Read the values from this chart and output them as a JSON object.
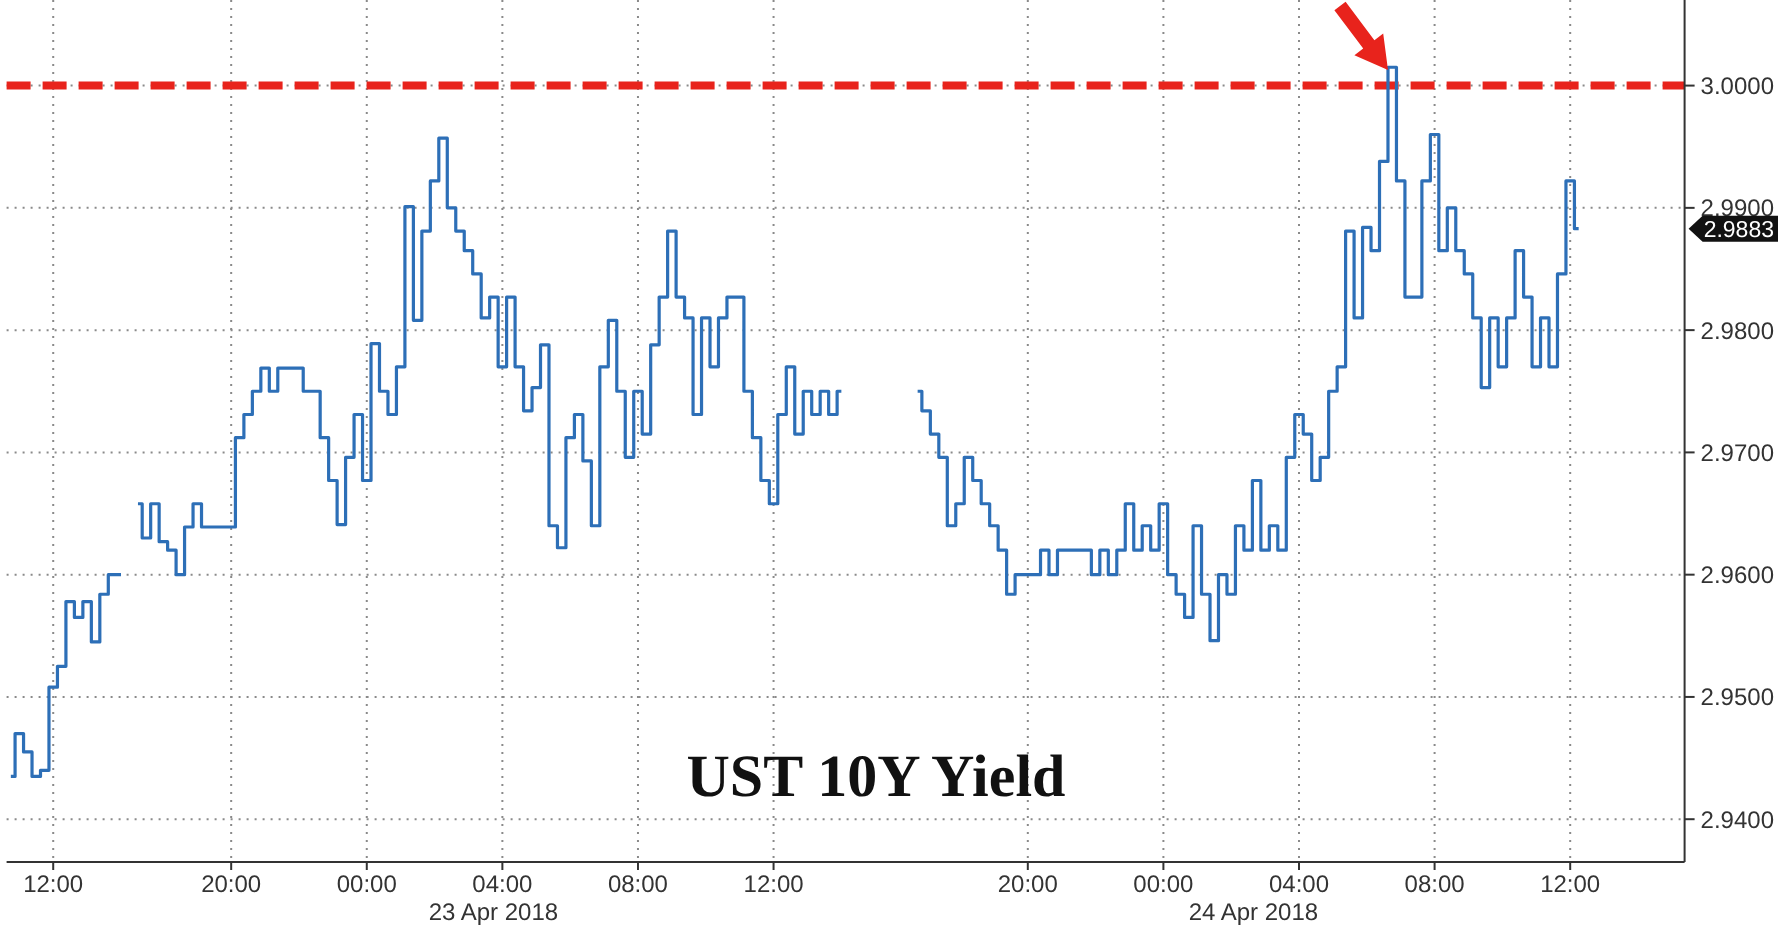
{
  "chart_data": {
    "type": "step",
    "title": "UST 10Y Yield",
    "color": "#2d6fb7",
    "ylim": [
      2.9365,
      3.007
    ],
    "yticks": [
      {
        "value": 2.94,
        "label": "2.9400"
      },
      {
        "value": 2.95,
        "label": "2.9500"
      },
      {
        "value": 2.96,
        "label": "2.9600"
      },
      {
        "value": 2.97,
        "label": "2.9700"
      },
      {
        "value": 2.98,
        "label": "2.9800"
      },
      {
        "value": 2.99,
        "label": "2.9900"
      },
      {
        "value": 3,
        "label": "3.0000"
      }
    ],
    "grid": true,
    "ref_lines": [
      {
        "axis": "y",
        "value": 3,
        "color": "#e8231c",
        "line_style": "dashed"
      }
    ],
    "annotations": [
      "2.9883",
      "23 Apr 2018",
      "24 Apr 2018"
    ],
    "categories": [
      null,
      null,
      null,
      null,
      null,
      "12:00",
      null,
      null,
      null,
      null,
      null,
      null,
      null,
      null,
      null,
      null,
      null,
      null,
      null,
      null,
      null,
      null,
      null,
      null,
      null,
      null,
      "20:00",
      null,
      null,
      null,
      null,
      null,
      null,
      null,
      null,
      null,
      null,
      null,
      null,
      null,
      null,
      null,
      "00:00",
      null,
      null,
      null,
      null,
      null,
      null,
      null,
      null,
      null,
      null,
      null,
      null,
      null,
      null,
      null,
      "04:00",
      null,
      null,
      null,
      null,
      null,
      null,
      null,
      null,
      null,
      null,
      null,
      null,
      null,
      null,
      null,
      "08:00",
      null,
      null,
      null,
      null,
      null,
      null,
      null,
      null,
      null,
      null,
      null,
      null,
      null,
      null,
      null,
      "12:00",
      null,
      null,
      null,
      null,
      null,
      null,
      null,
      null,
      null,
      null,
      null,
      null,
      null,
      null,
      null,
      null,
      null,
      null,
      null,
      null,
      null,
      null,
      null,
      null,
      null,
      null,
      null,
      null,
      null,
      "20:00",
      null,
      null,
      null,
      null,
      null,
      null,
      null,
      null,
      null,
      null,
      null,
      null,
      null,
      null,
      null,
      "00:00",
      null,
      null,
      null,
      null,
      null,
      null,
      null,
      null,
      null,
      null,
      null,
      null,
      null,
      null,
      null,
      "04:00",
      null,
      null,
      null,
      null,
      null,
      null,
      null,
      null,
      null,
      null,
      null,
      null,
      null,
      null,
      null,
      "08:00",
      null,
      null,
      null,
      null,
      null,
      null,
      null,
      null,
      null,
      null,
      null,
      null,
      null,
      null,
      null,
      "12:00",
      null,
      null,
      null,
      null,
      null,
      null,
      null,
      null,
      null,
      null,
      null,
      null,
      null
    ],
    "values": [
      2.9435,
      2.947,
      2.9455,
      2.9435,
      2.944,
      2.9508,
      2.9525,
      2.9578,
      2.9565,
      2.9578,
      2.9545,
      2.9584,
      2.96,
      2.96,
      null,
      2.9658,
      2.963,
      2.9658,
      2.9627,
      2.962,
      2.96,
      2.9639,
      2.9658,
      2.9639,
      2.9639,
      2.9639,
      2.9639,
      2.9712,
      2.9731,
      2.975,
      2.9769,
      2.975,
      2.9769,
      2.9769,
      2.9769,
      2.975,
      2.975,
      2.9712,
      2.9677,
      2.9641,
      2.9696,
      2.9731,
      2.9677,
      2.9789,
      2.975,
      2.9731,
      2.977,
      2.9901,
      2.9808,
      2.9881,
      2.9922,
      2.9957,
      2.99,
      2.9881,
      2.9865,
      2.9846,
      2.981,
      2.9827,
      2.977,
      2.9827,
      2.977,
      2.9734,
      2.9753,
      2.9788,
      2.964,
      2.9622,
      2.9712,
      2.9731,
      2.9693,
      2.964,
      2.977,
      2.9808,
      2.975,
      2.9696,
      2.975,
      2.9715,
      2.9788,
      2.9827,
      2.9881,
      2.9827,
      2.981,
      2.9731,
      2.981,
      2.977,
      2.981,
      2.9827,
      2.9827,
      2.975,
      2.9712,
      2.9677,
      2.9658,
      2.9731,
      2.977,
      2.9715,
      2.975,
      2.9731,
      2.975,
      2.9731,
      2.975,
      null,
      null,
      null,
      null,
      null,
      null,
      null,
      null,
      2.975,
      2.9734,
      2.9715,
      2.9696,
      2.964,
      2.9658,
      2.9696,
      2.9677,
      2.9658,
      2.964,
      2.962,
      2.9584,
      2.96,
      2.96,
      2.96,
      2.962,
      2.96,
      2.962,
      2.962,
      2.962,
      2.962,
      2.96,
      2.962,
      2.96,
      2.962,
      2.9658,
      2.962,
      2.964,
      2.962,
      2.9658,
      2.96,
      2.9584,
      2.9565,
      2.964,
      2.9584,
      2.9546,
      2.96,
      2.9584,
      2.964,
      2.962,
      2.9677,
      2.962,
      2.964,
      2.962,
      2.9696,
      2.9731,
      2.9715,
      2.9677,
      2.9696,
      2.975,
      2.977,
      2.9881,
      2.981,
      2.9884,
      2.9865,
      2.9938,
      3.0015,
      2.9922,
      2.9827,
      2.9827,
      2.9922,
      2.996,
      2.9865,
      2.99,
      2.9865,
      2.9846,
      2.981,
      2.9753,
      2.981,
      2.977,
      2.981,
      2.9865,
      2.9827,
      2.977,
      2.981,
      2.977,
      2.9846,
      2.9922,
      2.9883,
      null,
      null,
      null,
      null,
      null,
      null,
      null,
      null,
      null,
      null,
      null,
      null
    ]
  }
}
